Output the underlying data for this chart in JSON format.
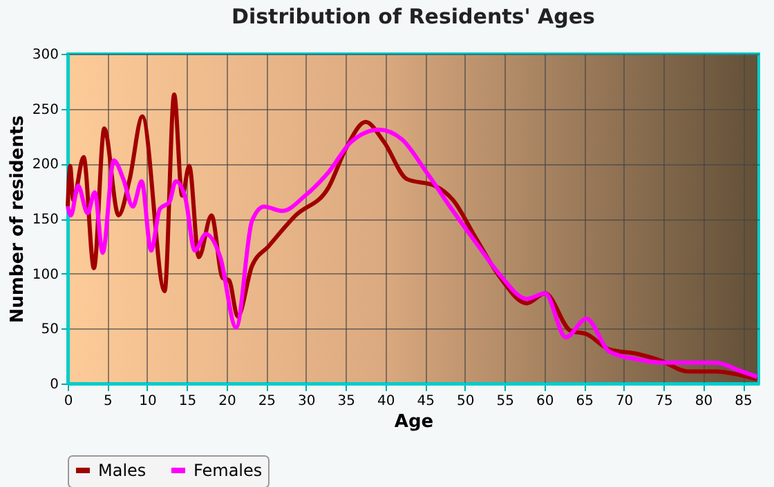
{
  "chart_data": {
    "type": "line",
    "title": "Distribution of Residents' Ages",
    "xlabel": "Age",
    "ylabel": "Number of residents",
    "xlim": [
      0,
      87
    ],
    "xticks": [
      0,
      5,
      10,
      15,
      20,
      25,
      30,
      35,
      40,
      45,
      50,
      55,
      60,
      65,
      70,
      75,
      80,
      85
    ],
    "ylim": [
      0,
      300
    ],
    "yticks": [
      0,
      50,
      100,
      150,
      200,
      250,
      300
    ],
    "grid": true,
    "legend": "bottom",
    "marker": "none",
    "line_style": "solid",
    "series": [
      {
        "name": "Males",
        "color": "#a00000",
        "x": [
          0,
          0.3,
          0.7,
          2.0,
          3.3,
          4.6,
          6.4,
          7.8,
          9.4,
          12.2,
          13.4,
          14.4,
          15.3,
          16.5,
          18.1,
          19.5,
          20.3,
          21.4,
          23.2,
          25.3,
          28.7,
          32.8,
          35.1,
          37.5,
          39.8,
          42.7,
          46.2,
          48.5,
          51.4,
          54.3,
          57.8,
          60.1,
          63.3,
          65.3,
          68.2,
          71.7,
          74.6,
          78.1,
          81.6,
          84.5,
          86.8
        ],
        "values": [
          161,
          198,
          167,
          206,
          105,
          232,
          153,
          186,
          243,
          84,
          263,
          171,
          198,
          115,
          153,
          96,
          94,
          61,
          107,
          125,
          153,
          178,
          215,
          238,
          220,
          186,
          180,
          167,
          132,
          98,
          73,
          82,
          48,
          45,
          31,
          27,
          21,
          11,
          11,
          8,
          4
        ]
      },
      {
        "name": "Females",
        "color": "#ff00ff",
        "x": [
          0,
          0.4,
          1.3,
          2.5,
          3.4,
          4.4,
          5.8,
          7.0,
          8.2,
          9.3,
          10.5,
          11.6,
          12.8,
          13.6,
          14.8,
          16.0,
          17.4,
          19.2,
          21.2,
          23.2,
          24.7,
          27.0,
          29.9,
          32.8,
          35.7,
          39.2,
          42.1,
          45.0,
          48.5,
          51.4,
          54.3,
          57.8,
          60.1,
          62.7,
          65.3,
          68.2,
          71.7,
          75.2,
          81.6,
          84.5,
          86.8
        ],
        "values": [
          161,
          153,
          180,
          155,
          174,
          119,
          203,
          186,
          161,
          184,
          121,
          159,
          165,
          184,
          169,
          121,
          136,
          115,
          51,
          148,
          161,
          157,
          171,
          192,
          220,
          231,
          222,
          194,
          157,
          128,
          100,
          77,
          82,
          42,
          59,
          29,
          22,
          19,
          19,
          12,
          6
        ]
      }
    ]
  }
}
